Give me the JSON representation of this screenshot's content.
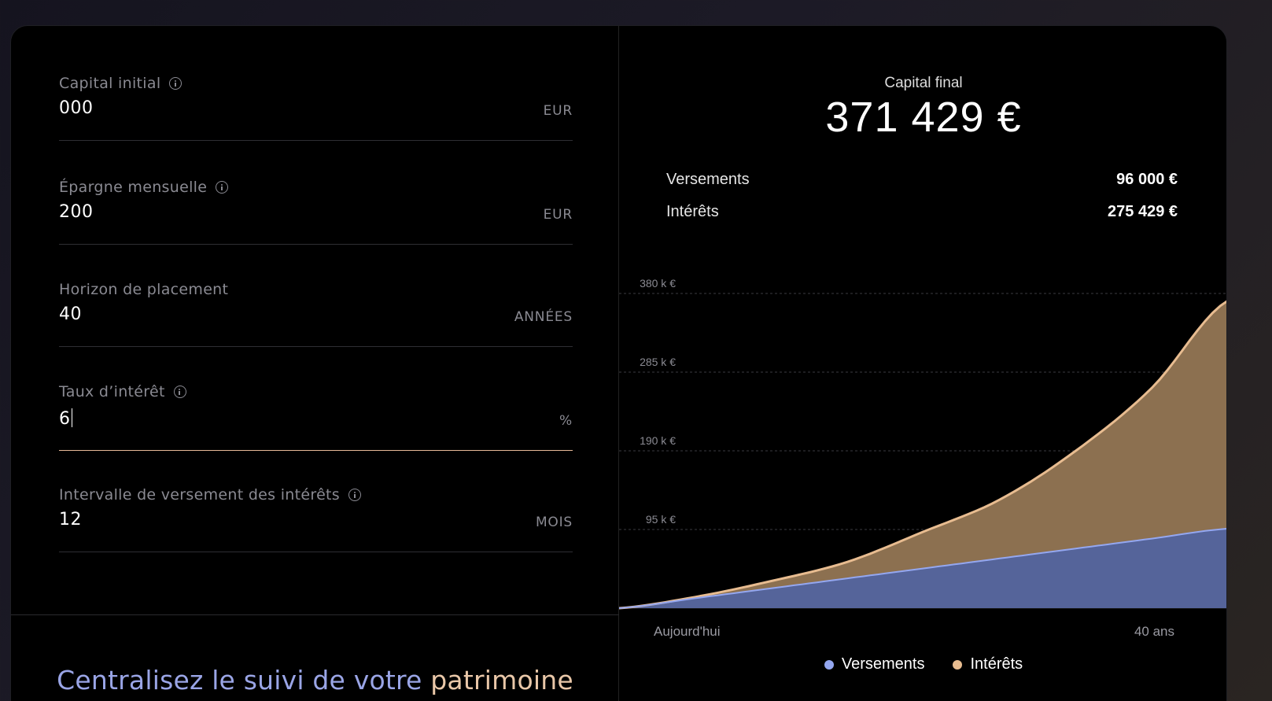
{
  "form": {
    "fields": [
      {
        "label": "Capital initial",
        "value": "000",
        "unit": "EUR",
        "has_info": true
      },
      {
        "label": "Épargne mensuelle",
        "value": "200",
        "unit": "EUR",
        "has_info": true
      },
      {
        "label": "Horizon de placement",
        "value": "40",
        "unit": "ANNÉES",
        "has_info": false
      },
      {
        "label": "Taux d’intérêt",
        "value": "6",
        "unit": "%",
        "has_info": true,
        "focused": true
      },
      {
        "label": "Intervalle de versement des intérêts",
        "value": "12",
        "unit": "MOIS",
        "has_info": true
      }
    ]
  },
  "promo": {
    "part1": "Centralisez le suivi de votre",
    "part2": "patrimoine"
  },
  "result": {
    "capital_label": "Capital final",
    "capital_value": "371 429 €",
    "rows": [
      {
        "label": "Versements",
        "value": "96 000 €"
      },
      {
        "label": "Intérêts",
        "value": "275 429 €"
      }
    ]
  },
  "colors": {
    "versements": "#94a7f0",
    "interets": "#e8bc90",
    "versements_fill": "#55649a",
    "interets_fill": "#8c7050",
    "accent": "#e7b997"
  },
  "chart_data": {
    "type": "area",
    "stacked": true,
    "x": [
      0,
      5,
      10,
      15,
      20,
      25,
      30,
      35,
      40
    ],
    "x_tick_labels": [
      "Aujourd'hui",
      "40 ans"
    ],
    "y_ticks": [
      95000,
      190000,
      285000,
      380000
    ],
    "y_tick_labels": [
      "95 k €",
      "190 k €",
      "285 k €",
      "380 k €"
    ],
    "ylim": [
      0,
      380000
    ],
    "series": [
      {
        "name": "Versements",
        "values": [
          0,
          12000,
          24000,
          36000,
          48000,
          60000,
          72000,
          84000,
          96000
        ]
      },
      {
        "name": "Intérêts",
        "values": [
          0,
          1528,
          8759,
          19900,
          44319,
          71000,
          118000,
          182000,
          275429
        ]
      }
    ],
    "grid": true,
    "legend": "bottom"
  }
}
